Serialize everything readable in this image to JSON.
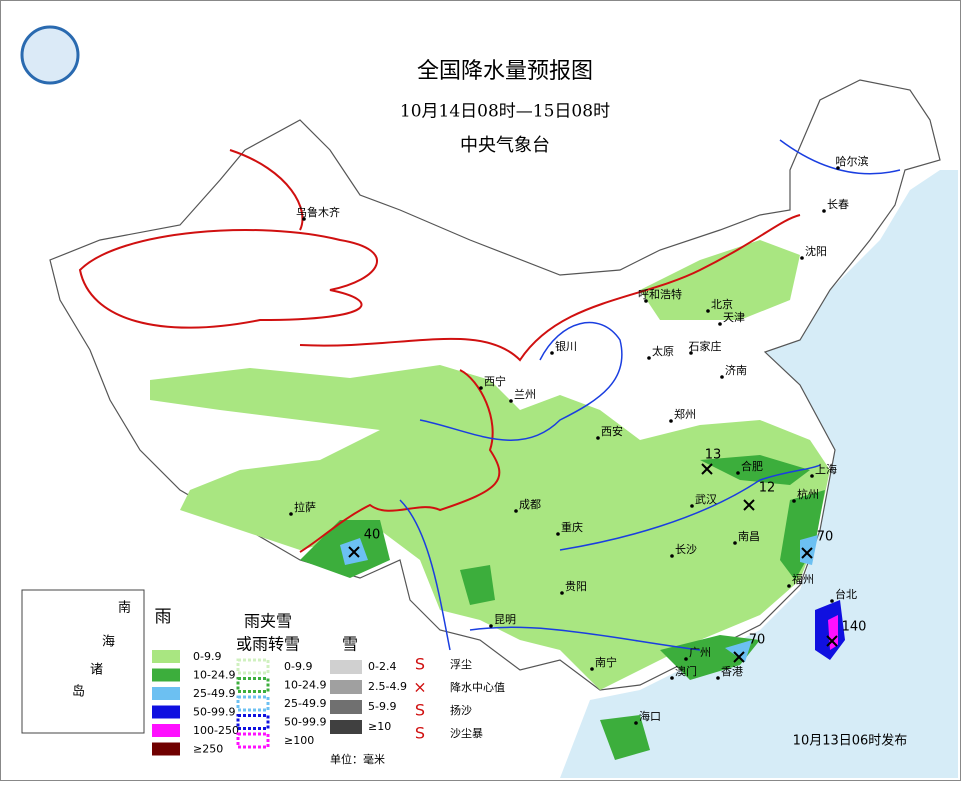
{
  "header": {
    "title": "全国降水量预报图",
    "subtitle": "10月14日08时—15日08时",
    "agency": "中央气象台"
  },
  "cities": [
    "乌鲁木齐",
    "哈尔滨",
    "长春",
    "沈阳",
    "呼和浩特",
    "北京",
    "天津",
    "石家庄",
    "太原",
    "银川",
    "济南",
    "西宁",
    "兰州",
    "郑州",
    "西安",
    "合肥",
    "上海",
    "武汉",
    "杭州",
    "成都",
    "拉萨",
    "重庆",
    "南昌",
    "长沙",
    "福州",
    "贵阳",
    "台北",
    "昆明",
    "南宁",
    "广州",
    "澳门",
    "香港",
    "海口"
  ],
  "rain_centers": [
    13,
    12,
    70,
    70,
    40,
    140
  ],
  "inset": [
    "南",
    "海",
    "诸",
    "岛"
  ],
  "legend": {
    "rain": {
      "title": "雨",
      "items": [
        "0-9.9",
        "10-24.9",
        "25-49.9",
        "50-99.9",
        "100-250",
        "≥250"
      ]
    },
    "mixed": {
      "title": [
        "雨夹雪",
        "或雨转雪"
      ],
      "items": [
        "0-9.9",
        "10-24.9",
        "25-49.9",
        "50-99.9",
        "≥100"
      ]
    },
    "snow": {
      "title": "雪",
      "items": [
        "0-2.4",
        "2.5-4.9",
        "5-9.9",
        "≥10"
      ]
    },
    "symbols": [
      "浮尘",
      "降水中心值",
      "扬沙",
      "沙尘暴"
    ],
    "unit": "单位：毫米"
  },
  "issued": "10月13日06时发布"
}
